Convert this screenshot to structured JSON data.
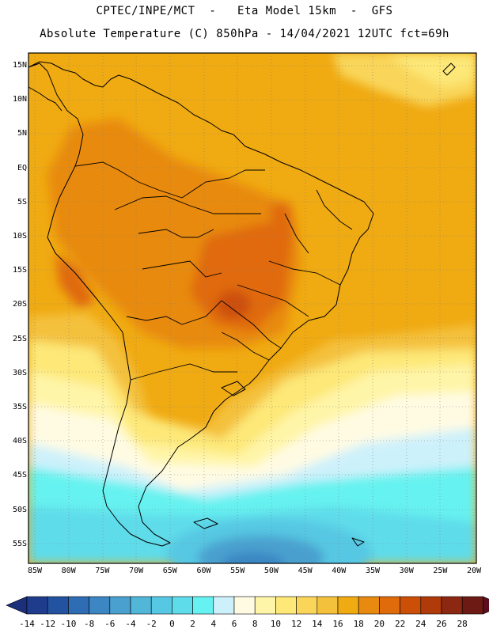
{
  "header": {
    "line1": "CPTEC/INPE/MCT  -   Eta Model 15km  -  GFS",
    "line2": "Absolute Temperature (C) 850hPa - 14/04/2021 12UTC fct=69h"
  },
  "lat_labels": [
    "15N",
    "10N",
    "5N",
    "EQ",
    "5S",
    "10S",
    "15S",
    "20S",
    "25S",
    "30S",
    "35S",
    "40S",
    "45S",
    "50S",
    "55S"
  ],
  "lon_labels": [
    "85W",
    "80W",
    "75W",
    "70W",
    "65W",
    "60W",
    "55W",
    "50W",
    "45W",
    "40W",
    "35W",
    "30W",
    "25W",
    "20W"
  ],
  "colorbar": {
    "labels": [
      "-14",
      "-12",
      "-10",
      "-8",
      "-6",
      "-4",
      "-2",
      "0",
      "2",
      "4",
      "6",
      "8",
      "10",
      "12",
      "14",
      "16",
      "18",
      "20",
      "22",
      "24",
      "26",
      "28"
    ],
    "colors": [
      "#1f3c8c",
      "#2353a0",
      "#2e6db3",
      "#3b86c3",
      "#4aa0cf",
      "#52b6d9",
      "#57c8e3",
      "#5fdcea",
      "#66f2f0",
      "#cdf1fb",
      "#fffbe3",
      "#fff5a8",
      "#fde878",
      "#f9d65a",
      "#f4c13d",
      "#f0aa12",
      "#e88a10",
      "#e06b0a",
      "#cc4f08",
      "#b03a0a",
      "#8c2712",
      "#6e1a14"
    ],
    "under_color": "#1b2f7a",
    "over_color": "#5c0d20"
  }
}
